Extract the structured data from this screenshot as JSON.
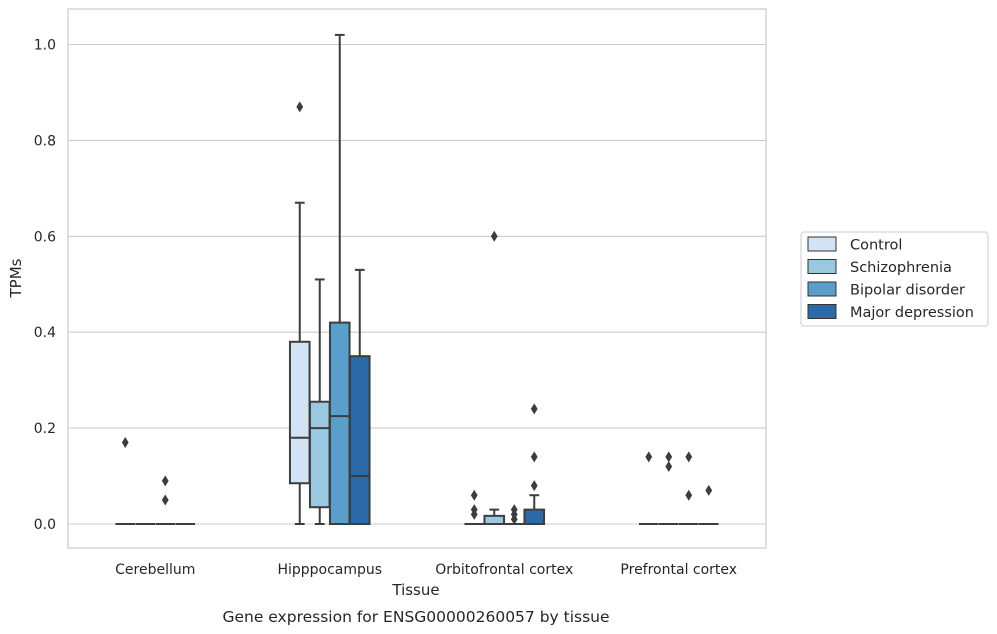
{
  "chart_data": {
    "type": "box",
    "title": "",
    "xlabel": "Tissue",
    "ylabel": "TPMs",
    "caption": "Gene expression for ENSG00000260057 by tissue",
    "categories": [
      "Cerebellum",
      "Hipppocampus",
      "Orbitofrontal cortex",
      "Prefrontal cortex"
    ],
    "ylim": [
      -0.05,
      1.07
    ],
    "yticks": [
      0.0,
      0.2,
      0.4,
      0.6,
      0.8,
      1.0
    ],
    "ytick_labels": [
      "0.0",
      "0.2",
      "0.4",
      "0.6",
      "0.8",
      "1.0"
    ],
    "grid": true,
    "legend_position": "right",
    "series": [
      {
        "name": "Control",
        "color": "#d2e3f3",
        "boxes": [
          {
            "category": "Cerebellum",
            "whislo": 0.0,
            "q1": 0.0,
            "med": 0.0,
            "q3": 0.0,
            "whishi": 0.0,
            "fliers": [
              0.17
            ]
          },
          {
            "category": "Hipppocampus",
            "whislo": 0.0,
            "q1": 0.085,
            "med": 0.18,
            "q3": 0.38,
            "whishi": 0.67,
            "fliers": [
              0.87
            ]
          },
          {
            "category": "Orbitofrontal cortex",
            "whislo": 0.0,
            "q1": 0.0,
            "med": 0.0,
            "q3": 0.0,
            "whishi": 0.0,
            "fliers": [
              0.02,
              0.03,
              0.06
            ]
          },
          {
            "category": "Prefrontal cortex",
            "whislo": 0.0,
            "q1": 0.0,
            "med": 0.0,
            "q3": 0.0,
            "whishi": 0.0,
            "fliers": [
              0.14
            ]
          }
        ]
      },
      {
        "name": "Schizophrenia",
        "color": "#9ac8e0",
        "boxes": [
          {
            "category": "Cerebellum",
            "whislo": 0.0,
            "q1": 0.0,
            "med": 0.0,
            "q3": 0.0,
            "whishi": 0.0,
            "fliers": []
          },
          {
            "category": "Hipppocampus",
            "whislo": 0.0,
            "q1": 0.035,
            "med": 0.2,
            "q3": 0.255,
            "whishi": 0.51,
            "fliers": []
          },
          {
            "category": "Orbitofrontal cortex",
            "whislo": 0.0,
            "q1": 0.0,
            "med": 0.0,
            "q3": 0.017,
            "whishi": 0.03,
            "fliers": [
              0.6
            ]
          },
          {
            "category": "Prefrontal cortex",
            "whislo": 0.0,
            "q1": 0.0,
            "med": 0.0,
            "q3": 0.0,
            "whishi": 0.0,
            "fliers": [
              0.12,
              0.14
            ]
          }
        ]
      },
      {
        "name": "Bipolar disorder",
        "color": "#5a9fcb",
        "boxes": [
          {
            "category": "Cerebellum",
            "whislo": 0.0,
            "q1": 0.0,
            "med": 0.0,
            "q3": 0.0,
            "whishi": 0.0,
            "fliers": [
              0.05,
              0.09
            ]
          },
          {
            "category": "Hipppocampus",
            "whislo": 0.0,
            "q1": 0.0,
            "med": 0.225,
            "q3": 0.42,
            "whishi": 1.02,
            "fliers": []
          },
          {
            "category": "Orbitofrontal cortex",
            "whislo": 0.0,
            "q1": 0.0,
            "med": 0.0,
            "q3": 0.0,
            "whishi": 0.0,
            "fliers": [
              0.01,
              0.02,
              0.03
            ]
          },
          {
            "category": "Prefrontal cortex",
            "whislo": 0.0,
            "q1": 0.0,
            "med": 0.0,
            "q3": 0.0,
            "whishi": 0.0,
            "fliers": [
              0.06,
              0.14
            ]
          }
        ]
      },
      {
        "name": "Major depression",
        "color": "#2a6aa9",
        "boxes": [
          {
            "category": "Cerebellum",
            "whislo": 0.0,
            "q1": 0.0,
            "med": 0.0,
            "q3": 0.0,
            "whishi": 0.0,
            "fliers": []
          },
          {
            "category": "Hipppocampus",
            "whislo": 0.0,
            "q1": 0.0,
            "med": 0.1,
            "q3": 0.35,
            "whishi": 0.53,
            "fliers": []
          },
          {
            "category": "Orbitofrontal cortex",
            "whislo": 0.0,
            "q1": 0.0,
            "med": 0.0,
            "q3": 0.03,
            "whishi": 0.06,
            "fliers": [
              0.08,
              0.14,
              0.24
            ]
          },
          {
            "category": "Prefrontal cortex",
            "whislo": 0.0,
            "q1": 0.0,
            "med": 0.0,
            "q3": 0.0,
            "whishi": 0.0,
            "fliers": [
              0.07
            ]
          }
        ]
      }
    ]
  }
}
